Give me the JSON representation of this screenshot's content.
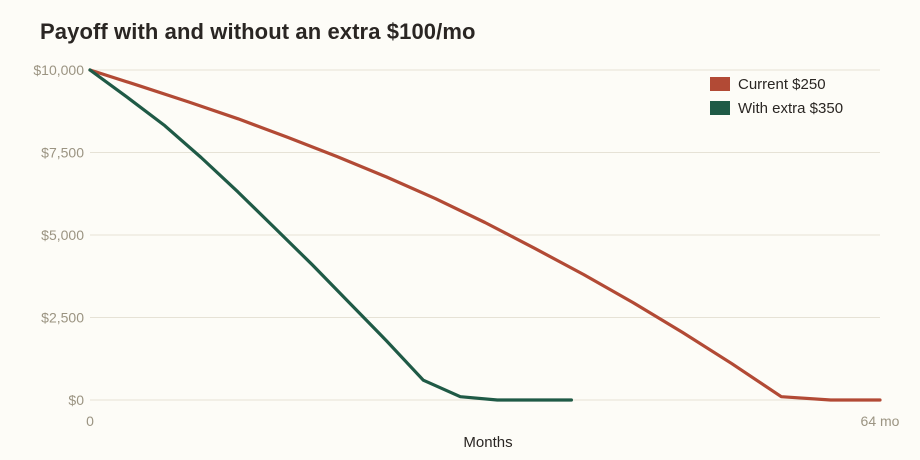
{
  "chart_data": {
    "type": "line",
    "title": "Payoff with and without an extra $100/mo",
    "xlabel": "Months",
    "ylabel": "",
    "xlim": [
      0,
      64
    ],
    "ylim": [
      0,
      10000
    ],
    "x_ticks": [
      {
        "value": 0,
        "label": "0"
      },
      {
        "value": 64,
        "label": "64 mo"
      }
    ],
    "y_ticks": [
      {
        "value": 0,
        "label": "$0"
      },
      {
        "value": 2500,
        "label": "$2,500"
      },
      {
        "value": 5000,
        "label": "$5,000"
      },
      {
        "value": 7500,
        "label": "$7,500"
      },
      {
        "value": 10000,
        "label": "$10,000"
      }
    ],
    "grid": "horizontal",
    "legend_position": "top-right",
    "series": [
      {
        "name": "Current $250",
        "color": "#b24a35",
        "x": [
          0,
          4,
          8,
          12,
          16,
          20,
          24,
          28,
          32,
          36,
          40,
          44,
          48,
          52,
          56,
          60,
          64
        ],
        "values": [
          10000,
          9520,
          9030,
          8520,
          7960,
          7380,
          6760,
          6100,
          5380,
          4600,
          3800,
          2950,
          2050,
          1100,
          100,
          0,
          0
        ]
      },
      {
        "name": "With extra $350",
        "color": "#1f5a46",
        "x": [
          0,
          3,
          6,
          9,
          12,
          15,
          18,
          21,
          24,
          27,
          30,
          33,
          36,
          38,
          39
        ],
        "values": [
          10000,
          9180,
          8330,
          7350,
          6300,
          5200,
          4100,
          2950,
          1800,
          600,
          100,
          0,
          0,
          0,
          0
        ]
      }
    ]
  }
}
